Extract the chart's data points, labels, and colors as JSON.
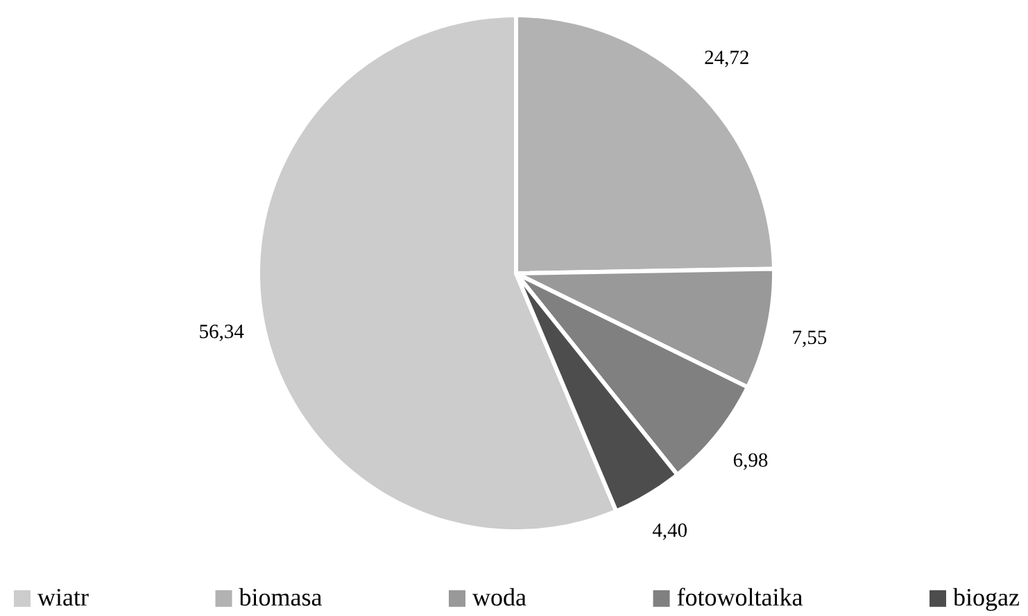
{
  "chart_data": {
    "type": "pie",
    "categories": [
      "wiatr",
      "biomasa",
      "woda",
      "fotowoltaika",
      "biogaz"
    ],
    "values": [
      56.34,
      24.72,
      7.55,
      6.98,
      4.4
    ],
    "value_labels": [
      "56,34",
      "24,72",
      "7,55",
      "6,98",
      "4,40"
    ],
    "colors": [
      "#cccccc",
      "#b2b2b2",
      "#999999",
      "#808080",
      "#4d4d4d"
    ],
    "legend": "bottom"
  }
}
